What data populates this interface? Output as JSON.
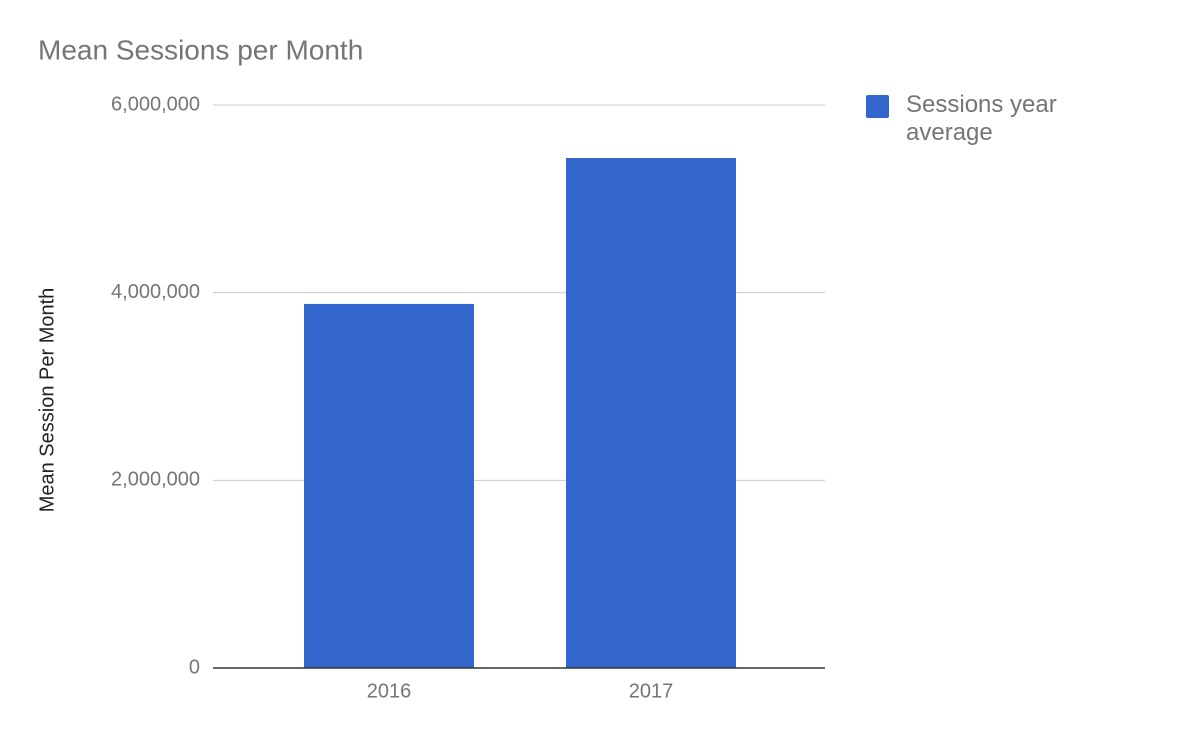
{
  "chart_data": {
    "type": "bar",
    "title": "Mean Sessions per Month",
    "y_label": "Mean Session Per Month",
    "categories": [
      "2016",
      "2017"
    ],
    "series": [
      {
        "name": "Sessions year average",
        "color": "#3366cc",
        "values": [
          3880000,
          5435000
        ]
      }
    ],
    "ylim": [
      0,
      6000000
    ],
    "yticks": [
      0,
      {
        "value": 2000000,
        "label": "2,000,000"
      },
      {
        "value": 4000000,
        "label": "4,000,000"
      },
      {
        "value": 6000000,
        "label": "6,000,000"
      }
    ],
    "grid": true,
    "legend": "right"
  }
}
